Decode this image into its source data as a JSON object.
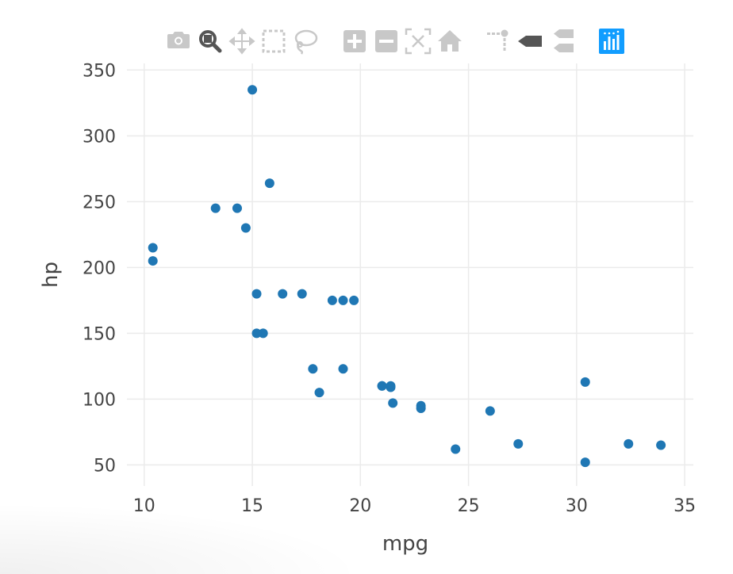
{
  "modebar": {
    "buttons": [
      {
        "icon": "camera-icon",
        "name": "download-plot-button",
        "group": 0
      },
      {
        "icon": "zoom-icon",
        "name": "zoom-button",
        "group": 0,
        "active": true
      },
      {
        "icon": "pan-icon",
        "name": "pan-button",
        "group": 0
      },
      {
        "icon": "box-select-icon",
        "name": "box-select-button",
        "group": 0
      },
      {
        "icon": "lasso-select-icon",
        "name": "lasso-select-button",
        "group": 0
      },
      {
        "icon": "zoom-in-icon",
        "name": "zoom-in-button",
        "group": 1
      },
      {
        "icon": "zoom-out-icon",
        "name": "zoom-out-button",
        "group": 1
      },
      {
        "icon": "autoscale-icon",
        "name": "autoscale-button",
        "group": 1
      },
      {
        "icon": "home-icon",
        "name": "reset-axes-button",
        "group": 1
      },
      {
        "icon": "spike-lines-icon",
        "name": "toggle-spike-lines-button",
        "group": 2
      },
      {
        "icon": "hover-closest-icon",
        "name": "show-closest-data-button",
        "group": 2,
        "active": true
      },
      {
        "icon": "hover-compare-icon",
        "name": "compare-data-button",
        "group": 2
      },
      {
        "icon": "plotly-logo-icon",
        "name": "plotly-logo-link",
        "group": 3
      }
    ],
    "colors": {
      "inactive": "#c8c8c8",
      "active": "#555555",
      "logo": "#119dff"
    }
  },
  "chart_data": {
    "type": "scatter",
    "xlabel": "mpg",
    "ylabel": "hp",
    "xlim": [
      9.2,
      35.4
    ],
    "ylim": [
      34,
      355
    ],
    "xticks": [
      10,
      15,
      20,
      25,
      30,
      35
    ],
    "yticks": [
      50,
      100,
      150,
      200,
      250,
      300,
      350
    ],
    "grid": true,
    "marker_color": "#1f77b4",
    "points": [
      {
        "x": 21.0,
        "y": 110
      },
      {
        "x": 21.0,
        "y": 110
      },
      {
        "x": 22.8,
        "y": 93
      },
      {
        "x": 21.4,
        "y": 110
      },
      {
        "x": 18.7,
        "y": 175
      },
      {
        "x": 18.1,
        "y": 105
      },
      {
        "x": 14.3,
        "y": 245
      },
      {
        "x": 24.4,
        "y": 62
      },
      {
        "x": 22.8,
        "y": 95
      },
      {
        "x": 19.2,
        "y": 123
      },
      {
        "x": 17.8,
        "y": 123
      },
      {
        "x": 16.4,
        "y": 180
      },
      {
        "x": 17.3,
        "y": 180
      },
      {
        "x": 15.2,
        "y": 180
      },
      {
        "x": 10.4,
        "y": 205
      },
      {
        "x": 10.4,
        "y": 215
      },
      {
        "x": 14.7,
        "y": 230
      },
      {
        "x": 32.4,
        "y": 66
      },
      {
        "x": 30.4,
        "y": 52
      },
      {
        "x": 33.9,
        "y": 65
      },
      {
        "x": 21.5,
        "y": 97
      },
      {
        "x": 15.5,
        "y": 150
      },
      {
        "x": 15.2,
        "y": 150
      },
      {
        "x": 13.3,
        "y": 245
      },
      {
        "x": 19.2,
        "y": 175
      },
      {
        "x": 27.3,
        "y": 66
      },
      {
        "x": 26.0,
        "y": 91
      },
      {
        "x": 30.4,
        "y": 113
      },
      {
        "x": 15.8,
        "y": 264
      },
      {
        "x": 19.7,
        "y": 175
      },
      {
        "x": 15.0,
        "y": 335
      },
      {
        "x": 21.4,
        "y": 109
      }
    ]
  }
}
